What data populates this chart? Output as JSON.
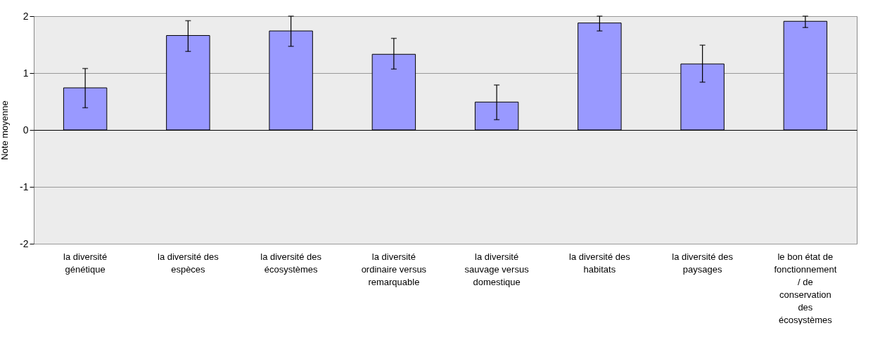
{
  "chart_data": {
    "type": "bar",
    "ylabel": "Note moyenne",
    "categories": [
      "la diversité génétique",
      "la diversité des espèces",
      "la diversité des écosystèmes",
      "la diversité ordinaire versus remarquable",
      "la diversité sauvage versus domestique",
      "la diversité des habitats",
      "la diversité des paysages",
      "le bon état de fonctionnement / de conservation des écosystèmes"
    ],
    "values": [
      0.74,
      1.66,
      1.74,
      1.33,
      0.49,
      1.88,
      1.16,
      1.91
    ],
    "errors": [
      [
        0.39,
        1.08
      ],
      [
        1.38,
        1.92
      ],
      [
        1.47,
        2.0
      ],
      [
        1.07,
        1.61
      ],
      [
        0.18,
        0.79
      ],
      [
        1.74,
        2.0
      ],
      [
        0.84,
        1.49
      ],
      [
        1.8,
        2.0
      ]
    ],
    "color": "#9999ff",
    "ylim": [
      -2,
      2
    ],
    "yticks": [
      -2,
      -1,
      0,
      1,
      2
    ],
    "grid": "y"
  }
}
